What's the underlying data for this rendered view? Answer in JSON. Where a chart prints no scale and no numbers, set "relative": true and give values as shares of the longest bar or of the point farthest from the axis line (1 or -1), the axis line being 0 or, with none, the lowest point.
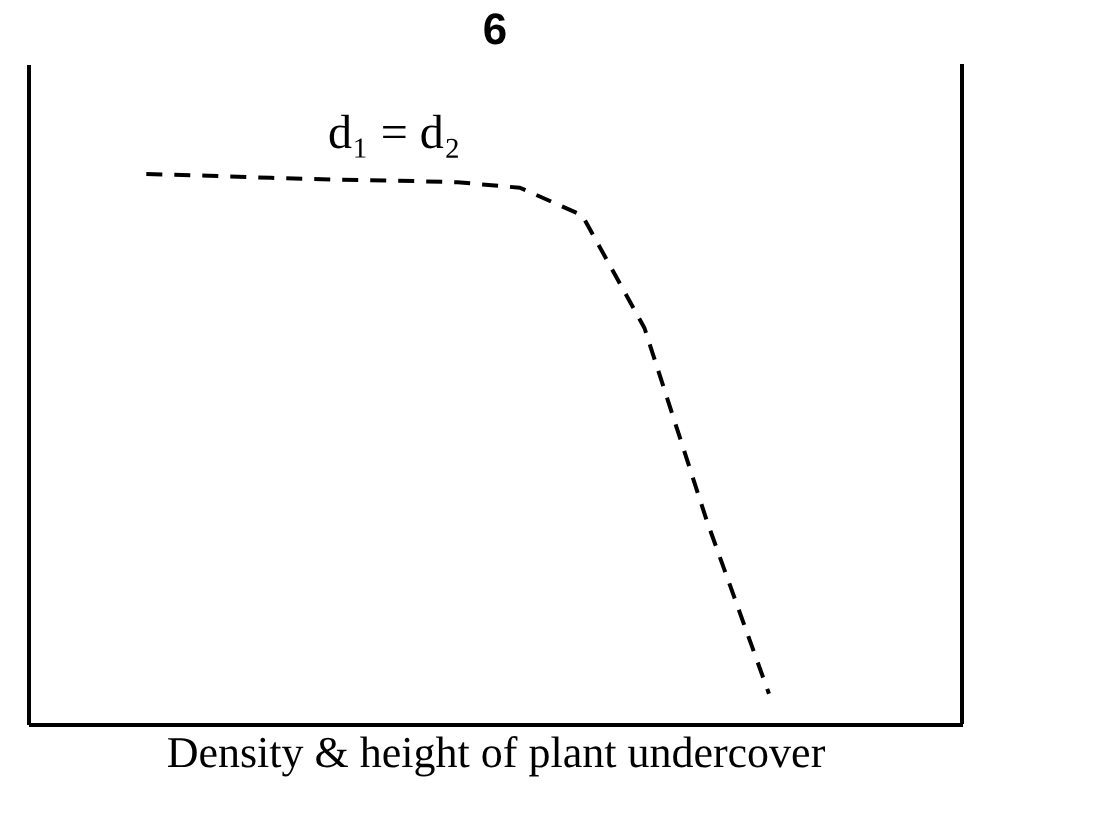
{
  "chart_data": {
    "type": "line",
    "title": "6",
    "xlabel": "Density & height of plant undercover",
    "relative": true,
    "categories": [
      null,
      null,
      null,
      null,
      null,
      null,
      null,
      null,
      null,
      null,
      null
    ],
    "series": [
      {
        "color": "#000000",
        "values": [
          1.0,
          0.997,
          0.993,
          0.99,
          0.988,
          0.985,
          0.975,
          0.925,
          0.72,
          0.37,
          0.055
        ]
      }
    ],
    "line_style": "dashed",
    "grid": false,
    "annotations": [
      "d₁ = d₂"
    ]
  }
}
